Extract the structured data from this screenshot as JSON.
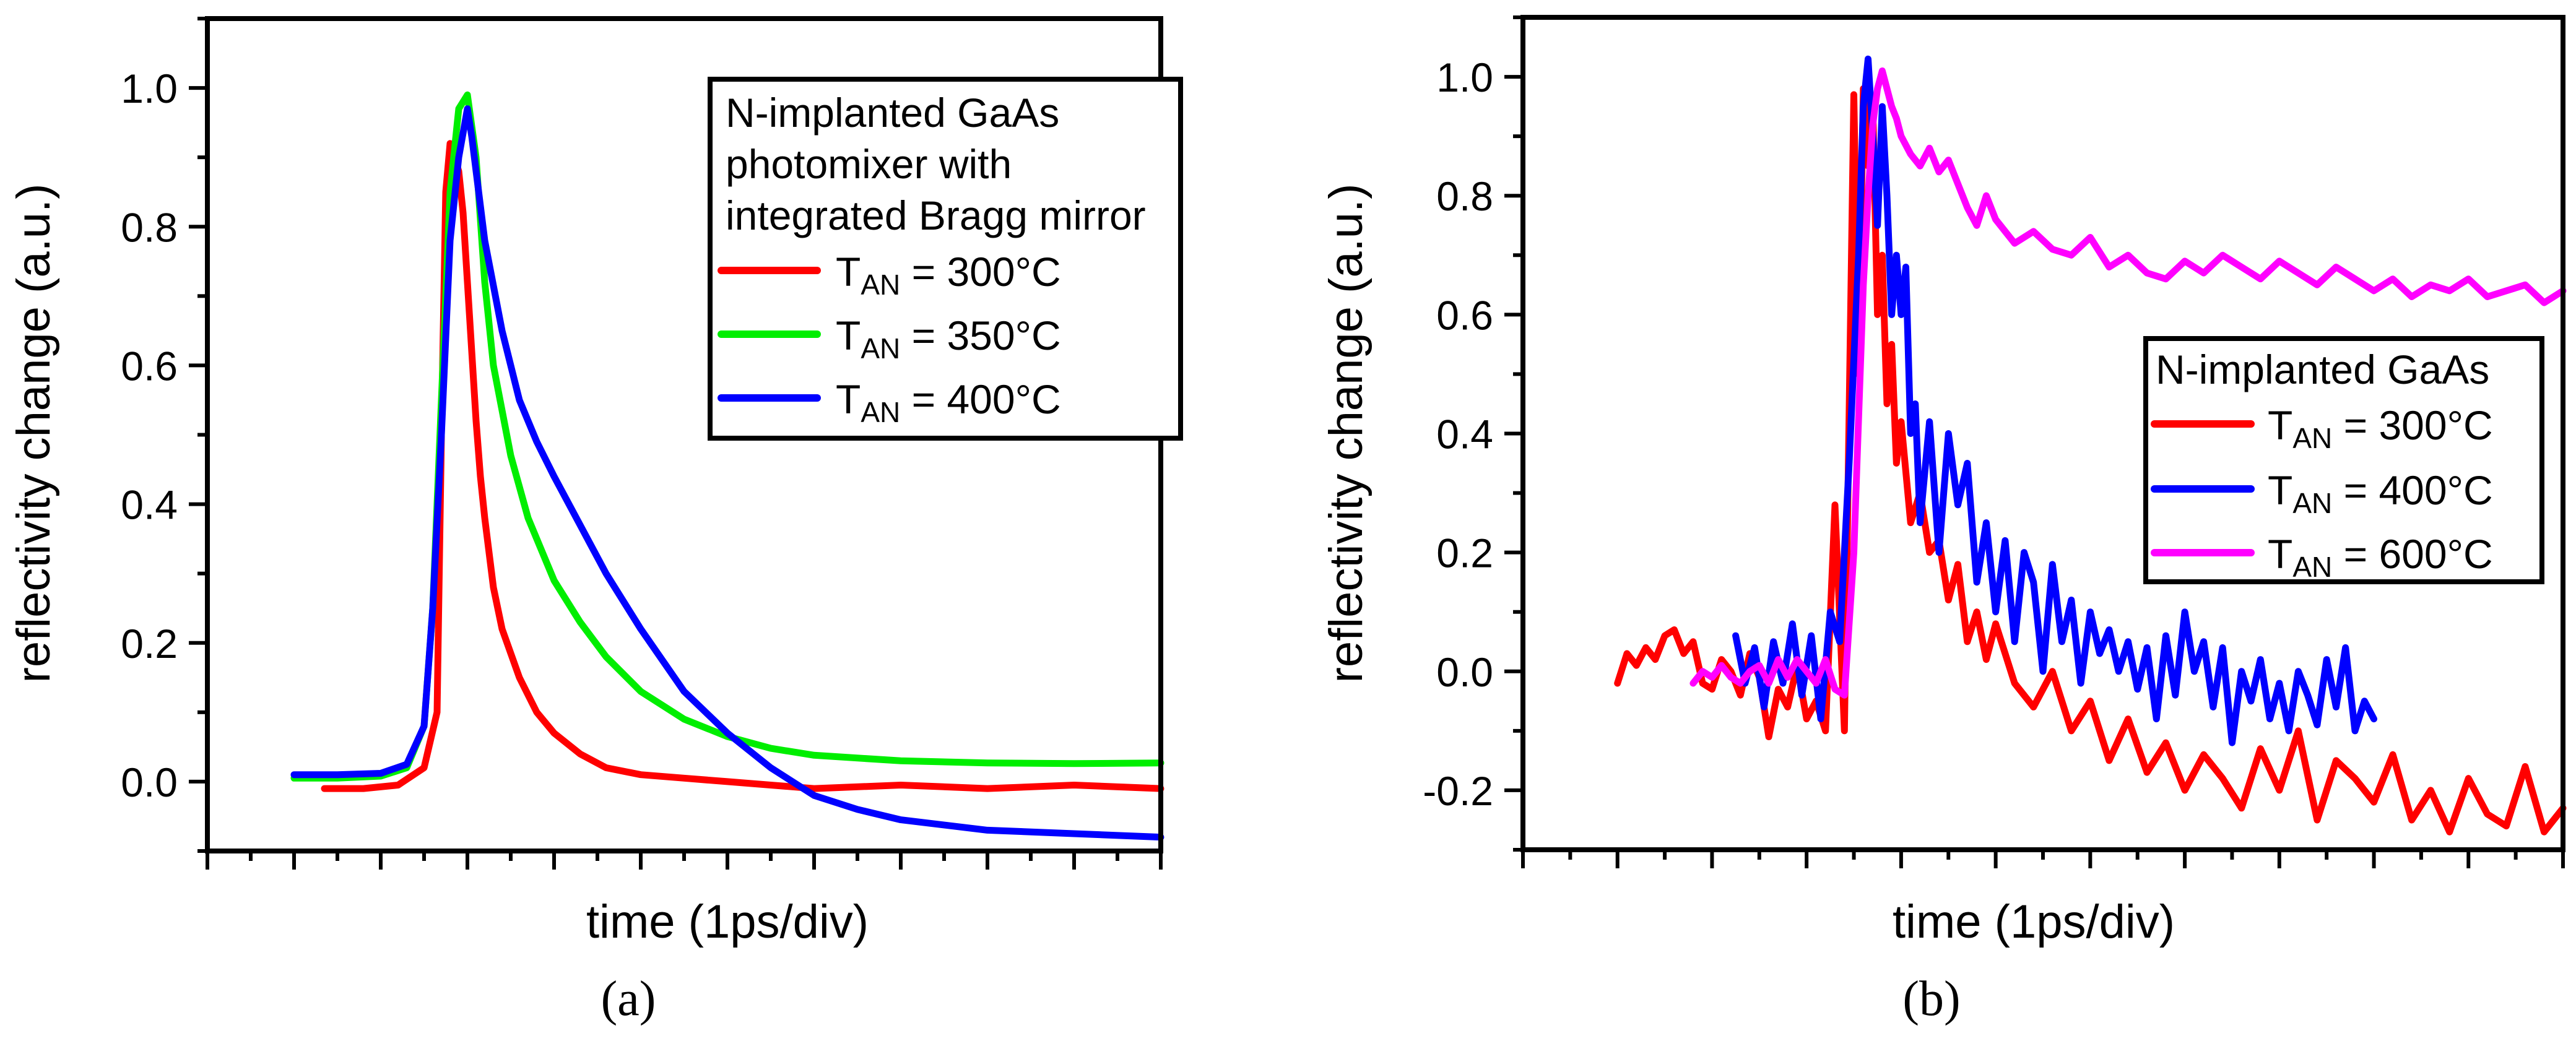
{
  "chart_data": [
    {
      "type": "line",
      "panel_label": "a",
      "title": "",
      "xlabel": "time (1ps/div)",
      "ylabel": "reflectivity change (a.u.)",
      "xlim": [
        -1.0,
        10.0
      ],
      "ylim": [
        -0.1,
        1.1
      ],
      "yticks": [
        0.0,
        0.2,
        0.4,
        0.6,
        0.8,
        1.0
      ],
      "ytick_labels": [
        "0.0",
        "0.2",
        "0.4",
        "0.6",
        "0.8",
        "1.0"
      ],
      "x_major_ticks": [
        0,
        1,
        2,
        3,
        4,
        5,
        6,
        7,
        8,
        9,
        10
      ],
      "x_tick_labels_shown": false,
      "legend": {
        "position": "top-right",
        "title_lines": [
          "N-implanted GaAs",
          "photomixer with",
          "integrated Bragg mirror"
        ]
      },
      "series": [
        {
          "name": "T_AN = 300°C",
          "label_main": "T",
          "label_sub": "AN",
          "label_rest": " = 300°C",
          "color": "#ff0000",
          "x": [
            0.35,
            0.8,
            1.2,
            1.5,
            1.65,
            1.7,
            1.75,
            1.8,
            1.85,
            1.9,
            1.95,
            2.0,
            2.05,
            2.1,
            2.15,
            2.2,
            2.3,
            2.4,
            2.6,
            2.8,
            3.0,
            3.3,
            3.6,
            4.0,
            4.5,
            5.0,
            5.5,
            6.0,
            7.0,
            8.0,
            9.0,
            10.0
          ],
          "y": [
            -0.01,
            -0.01,
            -0.005,
            0.02,
            0.1,
            0.5,
            0.85,
            0.92,
            0.9,
            0.88,
            0.82,
            0.72,
            0.62,
            0.52,
            0.44,
            0.38,
            0.28,
            0.22,
            0.15,
            0.1,
            0.07,
            0.04,
            0.02,
            0.01,
            0.005,
            0.0,
            -0.005,
            -0.01,
            -0.005,
            -0.01,
            -0.005,
            -0.01
          ]
        },
        {
          "name": "T_AN = 350°C",
          "label_main": "T",
          "label_sub": "AN",
          "label_rest": " = 350°C",
          "color": "#00ee00",
          "x": [
            0.0,
            0.5,
            1.0,
            1.3,
            1.5,
            1.6,
            1.7,
            1.8,
            1.9,
            2.0,
            2.1,
            2.2,
            2.3,
            2.5,
            2.7,
            3.0,
            3.3,
            3.6,
            4.0,
            4.5,
            5.0,
            5.5,
            6.0,
            7.0,
            8.0,
            9.0,
            10.0
          ],
          "y": [
            0.005,
            0.005,
            0.008,
            0.02,
            0.08,
            0.25,
            0.55,
            0.85,
            0.97,
            0.99,
            0.9,
            0.72,
            0.6,
            0.47,
            0.38,
            0.29,
            0.23,
            0.18,
            0.13,
            0.09,
            0.065,
            0.048,
            0.038,
            0.03,
            0.027,
            0.026,
            0.027
          ]
        },
        {
          "name": "T_AN = 400°C",
          "label_main": "T",
          "label_sub": "AN",
          "label_rest": " = 400°C",
          "color": "#0000ff",
          "x": [
            0.0,
            0.5,
            1.0,
            1.3,
            1.5,
            1.6,
            1.7,
            1.8,
            1.9,
            2.0,
            2.05,
            2.1,
            2.2,
            2.4,
            2.6,
            2.8,
            3.0,
            3.3,
            3.6,
            4.0,
            4.5,
            5.0,
            5.5,
            6.0,
            6.5,
            7.0,
            8.0,
            9.0,
            10.0
          ],
          "y": [
            0.01,
            0.01,
            0.012,
            0.025,
            0.08,
            0.25,
            0.5,
            0.78,
            0.9,
            0.97,
            0.93,
            0.88,
            0.78,
            0.65,
            0.55,
            0.49,
            0.44,
            0.37,
            0.3,
            0.22,
            0.13,
            0.07,
            0.02,
            -0.02,
            -0.04,
            -0.055,
            -0.07,
            -0.075,
            -0.08
          ]
        }
      ]
    },
    {
      "type": "line",
      "panel_label": "b",
      "title": "",
      "xlabel": "time (1ps/div)",
      "ylabel": "reflectivity change (a.u.)",
      "xlim": [
        -1.0,
        10.0
      ],
      "ylim": [
        -0.3,
        1.1
      ],
      "yticks": [
        -0.2,
        0.0,
        0.2,
        0.4,
        0.6,
        0.8,
        1.0
      ],
      "ytick_labels": [
        "-0.2",
        "0.0",
        "0.2",
        "0.4",
        "0.6",
        "0.8",
        "1.0"
      ],
      "x_major_ticks": [
        0,
        1,
        2,
        3,
        4,
        5,
        6,
        7,
        8,
        9,
        10
      ],
      "x_tick_labels_shown": false,
      "legend": {
        "position": "center-right",
        "title_lines": [
          "N-implanted GaAs"
        ]
      },
      "series": [
        {
          "name": "T_AN = 300°C",
          "label_main": "T",
          "label_sub": "AN",
          "label_rest": " = 300°C",
          "color": "#ff0000",
          "x": [
            0.0,
            0.1,
            0.2,
            0.3,
            0.4,
            0.5,
            0.6,
            0.7,
            0.8,
            0.9,
            1.0,
            1.1,
            1.2,
            1.3,
            1.4,
            1.5,
            1.6,
            1.7,
            1.8,
            1.9,
            2.0,
            2.1,
            2.2,
            2.3,
            2.4,
            2.5,
            2.55,
            2.6,
            2.65,
            2.7,
            2.75,
            2.8,
            2.85,
            2.9,
            2.95,
            3.0,
            3.1,
            3.2,
            3.3,
            3.4,
            3.5,
            3.6,
            3.7,
            3.8,
            3.9,
            4.0,
            4.2,
            4.4,
            4.6,
            4.8,
            5.0,
            5.2,
            5.4,
            5.6,
            5.8,
            6.0,
            6.2,
            6.4,
            6.6,
            6.8,
            7.0,
            7.2,
            7.4,
            7.6,
            7.8,
            8.0,
            8.2,
            8.4,
            8.6,
            8.8,
            9.0,
            9.2,
            9.4,
            9.6,
            9.8,
            10.0
          ],
          "y": [
            -0.02,
            0.03,
            0.01,
            0.04,
            0.02,
            0.06,
            0.07,
            0.03,
            0.05,
            -0.02,
            -0.03,
            0.02,
            0.0,
            -0.04,
            0.03,
            -0.01,
            -0.11,
            -0.03,
            -0.06,
            0.01,
            -0.08,
            -0.05,
            -0.1,
            0.28,
            -0.1,
            0.97,
            0.5,
            0.98,
            0.85,
            0.95,
            0.6,
            0.7,
            0.45,
            0.55,
            0.35,
            0.42,
            0.25,
            0.3,
            0.2,
            0.22,
            0.12,
            0.18,
            0.05,
            0.1,
            0.02,
            0.08,
            -0.02,
            -0.06,
            0.0,
            -0.1,
            -0.05,
            -0.15,
            -0.08,
            -0.17,
            -0.12,
            -0.2,
            -0.14,
            -0.18,
            -0.23,
            -0.13,
            -0.2,
            -0.1,
            -0.25,
            -0.15,
            -0.18,
            -0.22,
            -0.14,
            -0.25,
            -0.2,
            -0.27,
            -0.18,
            -0.24,
            -0.26,
            -0.16,
            -0.27,
            -0.23
          ]
        },
        {
          "name": "T_AN = 400°C",
          "label_main": "T",
          "label_sub": "AN",
          "label_rest": " = 400°C",
          "color": "#0000ff",
          "x": [
            1.25,
            1.35,
            1.45,
            1.55,
            1.65,
            1.75,
            1.85,
            1.95,
            2.05,
            2.15,
            2.25,
            2.35,
            2.45,
            2.55,
            2.6,
            2.65,
            2.7,
            2.75,
            2.8,
            2.85,
            2.9,
            2.95,
            3.0,
            3.05,
            3.1,
            3.15,
            3.2,
            3.3,
            3.4,
            3.5,
            3.6,
            3.7,
            3.8,
            3.9,
            4.0,
            4.1,
            4.2,
            4.3,
            4.4,
            4.5,
            4.6,
            4.7,
            4.8,
            4.9,
            5.0,
            5.1,
            5.2,
            5.3,
            5.4,
            5.5,
            5.6,
            5.7,
            5.8,
            5.9,
            6.0,
            6.1,
            6.2,
            6.3,
            6.4,
            6.5,
            6.6,
            6.7,
            6.8,
            6.9,
            7.0,
            7.1,
            7.2,
            7.3,
            7.4,
            7.5,
            7.6,
            7.7,
            7.8,
            7.9,
            8.0
          ],
          "y": [
            0.06,
            -0.02,
            0.04,
            -0.06,
            0.05,
            -0.02,
            0.08,
            -0.04,
            0.06,
            -0.08,
            0.1,
            0.05,
            0.35,
            0.7,
            0.95,
            1.03,
            0.9,
            0.75,
            0.95,
            0.8,
            0.6,
            0.7,
            0.6,
            0.68,
            0.4,
            0.45,
            0.25,
            0.42,
            0.2,
            0.4,
            0.28,
            0.35,
            0.15,
            0.25,
            0.1,
            0.22,
            0.05,
            0.2,
            0.15,
            0.0,
            0.18,
            0.05,
            0.12,
            -0.02,
            0.1,
            0.03,
            0.07,
            0.0,
            0.05,
            -0.03,
            0.04,
            -0.08,
            0.06,
            -0.04,
            0.1,
            0.0,
            0.05,
            -0.06,
            0.04,
            -0.12,
            0.0,
            -0.05,
            0.02,
            -0.08,
            -0.02,
            -0.1,
            0.0,
            -0.04,
            -0.09,
            0.02,
            -0.06,
            0.04,
            -0.1,
            -0.05,
            -0.08
          ]
        },
        {
          "name": "T_AN = 600°C",
          "label_main": "T",
          "label_sub": "AN",
          "label_rest": " = 600°C",
          "color": "#ff00ff",
          "x": [
            0.8,
            0.9,
            1.0,
            1.1,
            1.2,
            1.3,
            1.4,
            1.5,
            1.6,
            1.7,
            1.8,
            1.9,
            2.0,
            2.1,
            2.2,
            2.3,
            2.4,
            2.5,
            2.6,
            2.65,
            2.7,
            2.75,
            2.8,
            2.85,
            2.9,
            2.95,
            3.0,
            3.1,
            3.2,
            3.3,
            3.4,
            3.5,
            3.6,
            3.7,
            3.8,
            3.9,
            4.0,
            4.2,
            4.4,
            4.6,
            4.8,
            5.0,
            5.2,
            5.4,
            5.6,
            5.8,
            6.0,
            6.2,
            6.4,
            6.6,
            6.8,
            7.0,
            7.2,
            7.4,
            7.6,
            7.8,
            8.0,
            8.2,
            8.4,
            8.6,
            8.8,
            9.0,
            9.2,
            9.4,
            9.6,
            9.8,
            10.0
          ],
          "y": [
            -0.02,
            0.0,
            -0.01,
            0.01,
            -0.01,
            -0.02,
            0.0,
            0.01,
            -0.02,
            0.02,
            -0.01,
            0.02,
            0.0,
            -0.02,
            0.02,
            -0.03,
            -0.04,
            0.2,
            0.65,
            0.8,
            0.92,
            0.98,
            1.01,
            0.98,
            0.95,
            0.93,
            0.9,
            0.87,
            0.85,
            0.88,
            0.84,
            0.86,
            0.82,
            0.78,
            0.75,
            0.8,
            0.76,
            0.72,
            0.74,
            0.71,
            0.7,
            0.73,
            0.68,
            0.7,
            0.67,
            0.66,
            0.69,
            0.67,
            0.7,
            0.68,
            0.66,
            0.69,
            0.67,
            0.65,
            0.68,
            0.66,
            0.64,
            0.66,
            0.63,
            0.65,
            0.64,
            0.66,
            0.63,
            0.64,
            0.65,
            0.62,
            0.64
          ]
        }
      ]
    }
  ],
  "captions": {
    "a": "(a)",
    "b": "(b)"
  }
}
